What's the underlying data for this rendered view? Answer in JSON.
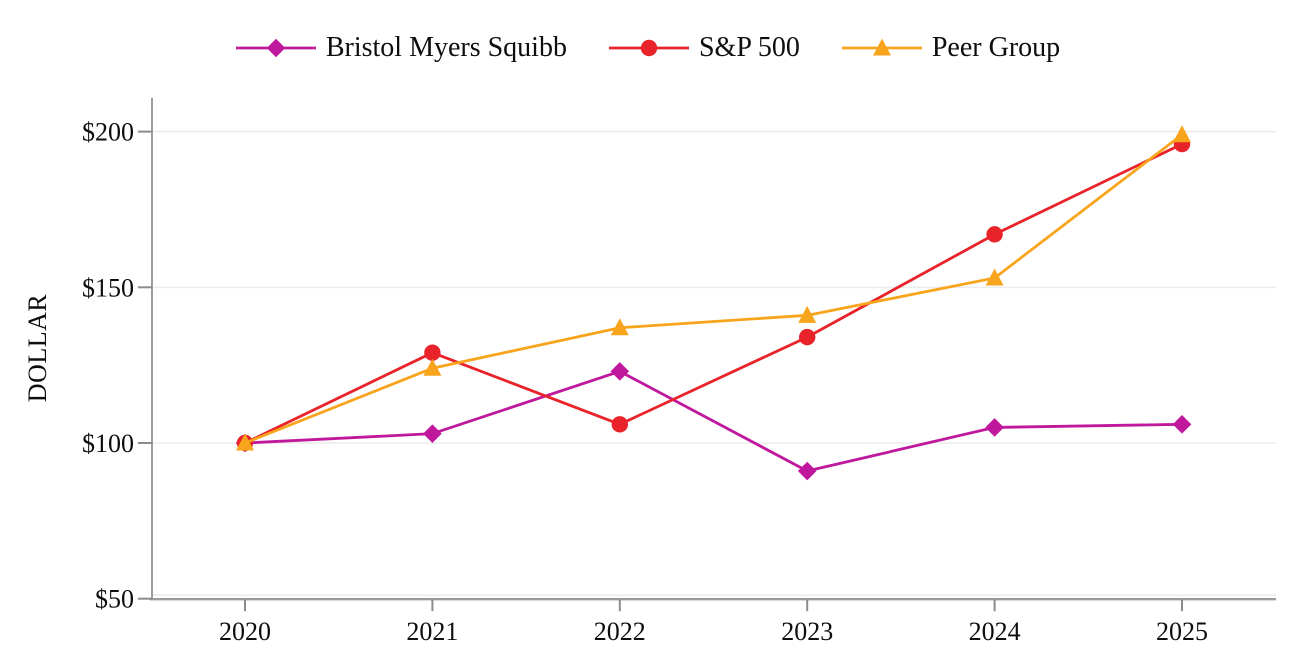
{
  "chart_data": {
    "type": "line",
    "title": "",
    "xlabel": "",
    "ylabel": "DOLLAR",
    "x": [
      2020,
      2021,
      2022,
      2023,
      2024,
      2025
    ],
    "x_tick_labels": [
      "2020",
      "2021",
      "2022",
      "2023",
      "2024",
      "2025"
    ],
    "y_ticks": [
      50,
      100,
      150,
      200
    ],
    "y_tick_labels": [
      "$50",
      "$100",
      "$150",
      "$200"
    ],
    "ylim": [
      50,
      210
    ],
    "grid": "horizontal",
    "legend_position": "top",
    "series": [
      {
        "name": "Bristol Myers Squibb",
        "color": "#bf189c",
        "marker": "diamond",
        "values": [
          100,
          103,
          123,
          91,
          105,
          106
        ]
      },
      {
        "name": "S&P 500",
        "color": "#e8232a",
        "marker": "circle",
        "values": [
          100,
          129,
          106,
          134,
          167,
          196
        ]
      },
      {
        "name": "Peer Group",
        "color": "#f8a41d",
        "marker": "triangle",
        "values": [
          100,
          124,
          137,
          141,
          153,
          199
        ]
      }
    ],
    "colors": {
      "axis": "#9c9c9c",
      "tick": "#8c8c8c",
      "gridline": "#ececec",
      "text": "#0e0e0e",
      "background": "#ffffff"
    }
  }
}
